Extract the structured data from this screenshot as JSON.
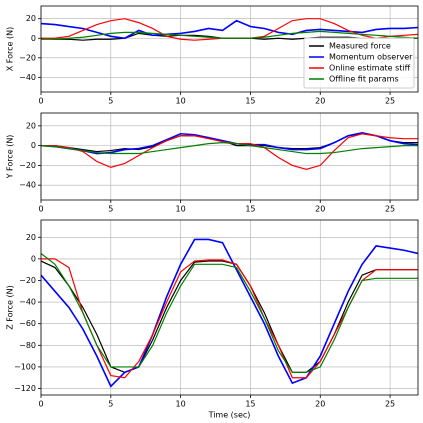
{
  "chart_data": [
    {
      "type": "line",
      "ylabel": "X Force (N)",
      "grid": true,
      "legend": "lower right",
      "x": [
        0,
        1,
        2,
        3,
        4,
        5,
        6,
        7,
        8,
        9,
        10,
        11,
        12,
        13,
        14,
        15,
        16,
        17,
        18,
        19,
        20,
        21,
        22,
        23,
        24,
        25,
        26,
        27
      ],
      "xlim": [
        0,
        27
      ],
      "xticks": [
        0,
        5,
        10,
        15,
        20,
        25
      ],
      "ylim": [
        -55,
        33
      ],
      "yticks": [
        20,
        0,
        {
          "value": -20,
          "label": "−20"
        },
        {
          "value": -40,
          "label": "−40"
        }
      ],
      "series": [
        {
          "name": "Measured force",
          "color": "#000000",
          "values": [
            0,
            -1,
            -1,
            -2,
            -1,
            -1,
            0,
            5,
            3,
            2,
            3,
            3,
            2,
            0,
            0,
            0,
            -1,
            0,
            -1,
            0,
            1,
            1,
            1,
            0,
            0,
            0,
            0,
            0
          ]
        },
        {
          "name": "Momentum observer",
          "color": "#0000ff",
          "values": [
            15,
            14,
            12,
            10,
            6,
            2,
            0,
            8,
            3,
            4,
            5,
            7,
            10,
            8,
            18,
            12,
            10,
            6,
            4,
            8,
            9,
            8,
            7,
            6,
            9,
            10,
            10,
            11
          ]
        },
        {
          "name": "Online estimate stiff",
          "color": "#ff0000",
          "values": [
            0,
            0,
            2,
            8,
            14,
            18,
            20,
            16,
            10,
            2,
            -1,
            -2,
            -1,
            0,
            0,
            0,
            2,
            10,
            18,
            20,
            20,
            15,
            8,
            3,
            0,
            2,
            3,
            4
          ]
        },
        {
          "name": "Offline fit params",
          "color": "#008000",
          "values": [
            -1,
            -1,
            0,
            1,
            3,
            5,
            6,
            6,
            5,
            4,
            3,
            2,
            1,
            0,
            0,
            0,
            1,
            3,
            5,
            6,
            7,
            6,
            5,
            4,
            3,
            2,
            1,
            0
          ]
        }
      ]
    },
    {
      "type": "line",
      "ylabel": "Y Force (N)",
      "grid": true,
      "x": [
        0,
        1,
        2,
        3,
        4,
        5,
        6,
        7,
        8,
        9,
        10,
        11,
        12,
        13,
        14,
        15,
        16,
        17,
        18,
        19,
        20,
        21,
        22,
        23,
        24,
        25,
        26,
        27
      ],
      "xlim": [
        0,
        27
      ],
      "xticks": [
        0,
        5,
        10,
        15,
        20,
        25
      ],
      "ylim": [
        -55,
        33
      ],
      "yticks": [
        20,
        0,
        {
          "value": -20,
          "label": "−20"
        },
        {
          "value": -40,
          "label": "−40"
        }
      ],
      "series": [
        {
          "color": "#000000",
          "values": [
            0,
            0,
            -2,
            -4,
            -6,
            -5,
            -3,
            -4,
            -1,
            5,
            10,
            10,
            8,
            5,
            0,
            0,
            0,
            -2,
            -3,
            -3,
            -2,
            3,
            10,
            12,
            10,
            5,
            3,
            3
          ]
        },
        {
          "color": "#0000ff",
          "values": [
            0,
            -1,
            -3,
            -5,
            -8,
            -7,
            -4,
            -3,
            0,
            6,
            12,
            11,
            8,
            5,
            2,
            1,
            1,
            -2,
            -4,
            -4,
            -3,
            3,
            10,
            13,
            10,
            5,
            2,
            1
          ]
        },
        {
          "color": "#ff0000",
          "values": [
            0,
            0,
            -2,
            -6,
            -16,
            -22,
            -18,
            -10,
            -2,
            5,
            10,
            10,
            7,
            4,
            2,
            2,
            -2,
            -12,
            -20,
            -24,
            -20,
            -5,
            8,
            12,
            10,
            8,
            7,
            7
          ]
        },
        {
          "color": "#008000",
          "values": [
            0,
            -1,
            -3,
            -5,
            -7,
            -8,
            -8,
            -8,
            -6,
            -4,
            -2,
            0,
            2,
            3,
            2,
            0,
            -2,
            -4,
            -6,
            -8,
            -8,
            -7,
            -5,
            -3,
            -2,
            -1,
            0,
            0
          ]
        }
      ]
    },
    {
      "type": "line",
      "ylabel": "Z Force (N)",
      "xlabel": "Time (sec)",
      "grid": true,
      "x": [
        0,
        1,
        2,
        3,
        4,
        5,
        6,
        7,
        8,
        9,
        10,
        11,
        12,
        13,
        14,
        15,
        16,
        17,
        18,
        19,
        20,
        21,
        22,
        23,
        24,
        25,
        26,
        27
      ],
      "xlim": [
        0,
        27
      ],
      "xticks": [
        0,
        5,
        10,
        15,
        20,
        25
      ],
      "ylim": [
        -126,
        36
      ],
      "yticks": [
        20,
        0,
        {
          "value": -20,
          "label": "−20"
        },
        {
          "value": -40,
          "label": "−40"
        },
        {
          "value": -60,
          "label": "−60"
        },
        {
          "value": -80,
          "label": "−80"
        },
        {
          "value": -100,
          "label": "−100"
        },
        {
          "value": -120,
          "label": "−120"
        }
      ],
      "series": [
        {
          "color": "#000000",
          "values": [
            -2,
            -8,
            -25,
            -45,
            -70,
            -100,
            -105,
            -100,
            -75,
            -45,
            -20,
            -3,
            -2,
            -2,
            -5,
            -25,
            -50,
            -80,
            -105,
            -105,
            -95,
            -70,
            -40,
            -15,
            -10,
            -10,
            -10,
            -10
          ]
        },
        {
          "color": "#0000ff",
          "values": [
            -15,
            -30,
            -45,
            -65,
            -90,
            -118,
            -105,
            -100,
            -70,
            -35,
            -5,
            18,
            18,
            15,
            -10,
            -35,
            -60,
            -90,
            -115,
            -110,
            -90,
            -60,
            -30,
            -5,
            12,
            10,
            8,
            5
          ]
        },
        {
          "color": "#ff0000",
          "values": [
            0,
            0,
            -8,
            -50,
            -80,
            -108,
            -110,
            -95,
            -70,
            -40,
            -12,
            -2,
            -1,
            -1,
            -5,
            -25,
            -55,
            -80,
            -110,
            -110,
            -95,
            -70,
            -45,
            -20,
            -10,
            -10,
            -10,
            -10
          ]
        },
        {
          "color": "#008000",
          "values": [
            5,
            -5,
            -25,
            -50,
            -80,
            -100,
            -100,
            -100,
            -80,
            -50,
            -25,
            -5,
            -5,
            -5,
            -8,
            -30,
            -55,
            -85,
            -105,
            -105,
            -100,
            -75,
            -45,
            -20,
            -18,
            -18,
            -18,
            -18
          ]
        }
      ]
    }
  ]
}
